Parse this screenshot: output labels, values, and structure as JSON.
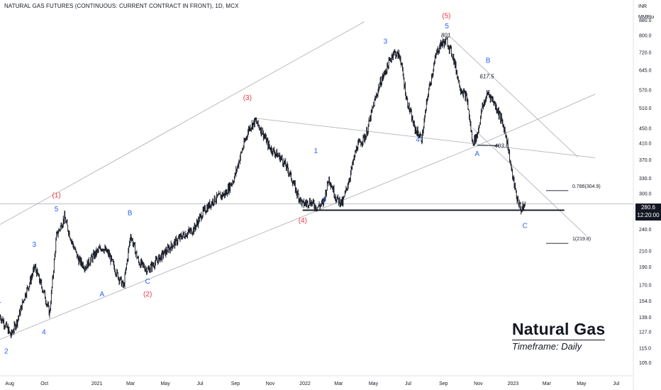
{
  "header": {
    "title": "NATURAL GAS FUTURES (CONTINUOUS: CURRENT CONTRACT IN FRONT), 1D, MCX"
  },
  "currency": "INR",
  "unit": "MMBtu",
  "last_price": {
    "value": "280.6",
    "countdown": "12:20:00"
  },
  "brand": {
    "title": "Natural Gas",
    "subtitle": "Timeframe: Daily"
  },
  "colors": {
    "bars": "#131722",
    "wave_blue": "#2962ff",
    "wave_red": "#f23645",
    "channel": "#b2b5be",
    "background": "#ffffff"
  },
  "chart_data": {
    "type": "line",
    "scale": "log",
    "ylim": [
      100,
      920
    ],
    "y_ticks": [
      105.0,
      115.0,
      127.0,
      139.0,
      154.0,
      170.0,
      190.0,
      210.0,
      240.0,
      270.0,
      300.0,
      330.0,
      370.0,
      410.0,
      450.0,
      510.0,
      570.0,
      645.0,
      720.0,
      800.0,
      880.0
    ],
    "x_ticks": [
      "Aug",
      "Oct",
      "2021",
      "Mar",
      "May",
      "Jul",
      "Sep",
      "Nov",
      "2022",
      "Mar",
      "May",
      "Jul",
      "Sep",
      "Nov",
      "2023",
      "Mar",
      "May",
      "Jul"
    ],
    "xlim": [
      "2020-07-15",
      "2023-07-31"
    ],
    "x_tick_dates": [
      "2020-08-01",
      "2020-10-01",
      "2021-01-01",
      "2021-03-01",
      "2021-05-01",
      "2021-07-01",
      "2021-09-01",
      "2021-11-01",
      "2022-01-01",
      "2022-03-01",
      "2022-05-01",
      "2022-07-01",
      "2022-09-01",
      "2022-11-01",
      "2023-01-01",
      "2023-03-01",
      "2023-05-01",
      "2023-07-01"
    ],
    "series": [
      {
        "x": [
          "2020-07-15",
          "2020-07-25",
          "2020-08-03",
          "2020-08-15",
          "2020-08-28",
          "2020-09-05",
          "2020-09-14",
          "2020-09-22",
          "2020-09-30",
          "2020-10-10",
          "2020-10-22",
          "2020-11-05",
          "2020-11-18",
          "2020-11-30",
          "2020-12-12",
          "2020-12-28",
          "2021-01-10",
          "2021-01-22",
          "2021-02-05",
          "2021-02-17",
          "2021-03-01",
          "2021-03-15",
          "2021-03-31",
          "2021-04-20",
          "2021-05-10",
          "2021-05-30",
          "2021-06-20",
          "2021-07-05",
          "2021-07-25",
          "2021-08-15",
          "2021-08-30",
          "2021-09-10",
          "2021-09-25",
          "2021-10-06",
          "2021-10-18",
          "2021-10-30",
          "2021-11-10",
          "2021-11-22",
          "2021-12-05",
          "2021-12-18",
          "2021-12-28",
          "2022-01-10",
          "2022-01-22",
          "2022-02-02",
          "2022-02-12",
          "2022-02-25",
          "2022-03-08",
          "2022-03-20",
          "2022-04-02",
          "2022-04-18",
          "2022-04-30",
          "2022-05-12",
          "2022-05-24",
          "2022-06-05",
          "2022-06-17",
          "2022-06-28",
          "2022-07-12",
          "2022-07-25",
          "2022-08-05",
          "2022-08-20",
          "2022-08-28",
          "2022-09-07",
          "2022-09-18",
          "2022-09-30",
          "2022-10-12",
          "2022-10-22",
          "2022-10-30",
          "2022-11-08",
          "2022-11-18",
          "2022-11-28",
          "2022-12-08",
          "2022-12-20",
          "2022-12-30",
          "2023-01-08",
          "2023-01-16",
          "2023-01-22"
        ],
        "close": [
          140,
          132,
          124,
          137,
          160,
          172,
          190,
          175,
          162,
          142,
          230,
          258,
          222,
          198,
          190,
          205,
          215,
          205,
          182,
          168,
          232,
          196,
          186,
          200,
          215,
          230,
          240,
          265,
          288,
          300,
          330,
          380,
          450,
          470,
          440,
          400,
          385,
          370,
          340,
          300,
          280,
          285,
          275,
          282,
          330,
          290,
          282,
          330,
          400,
          430,
          510,
          590,
          650,
          720,
          700,
          540,
          450,
          420,
          560,
          720,
          760,
          770,
          700,
          580,
          540,
          410,
          430,
          510,
          560,
          530,
          490,
          430,
          340,
          290,
          270,
          280
        ],
        "name": ""
      }
    ],
    "wave_labels": [
      {
        "text": "1",
        "date": "2020-07-14",
        "price": 152,
        "color": "blue"
      },
      {
        "text": "2",
        "date": "2020-07-26",
        "price": 111,
        "color": "blue"
      },
      {
        "text": "3",
        "date": "2020-09-13",
        "price": 215,
        "color": "blue"
      },
      {
        "text": "4",
        "date": "2020-09-30",
        "price": 125,
        "color": "blue"
      },
      {
        "text": "5",
        "date": "2020-10-22",
        "price": 268,
        "color": "blue"
      },
      {
        "text": "(1)",
        "date": "2020-10-22",
        "price": 292,
        "color": "red"
      },
      {
        "text": "A",
        "date": "2021-01-10",
        "price": 158,
        "color": "blue"
      },
      {
        "text": "B",
        "date": "2021-02-28",
        "price": 262,
        "color": "blue"
      },
      {
        "text": "C",
        "date": "2021-03-31",
        "price": 171,
        "color": "blue"
      },
      {
        "text": "(2)",
        "date": "2021-03-31",
        "price": 158,
        "color": "red"
      },
      {
        "text": "(3)",
        "date": "2021-09-22",
        "price": 535,
        "color": "red"
      },
      {
        "text": "(4)",
        "date": "2021-12-28",
        "price": 250,
        "color": "red"
      },
      {
        "text": "1",
        "date": "2022-01-20",
        "price": 385,
        "color": "blue"
      },
      {
        "text": "2",
        "date": "2022-02-03",
        "price": 283,
        "color": "blue"
      },
      {
        "text": "3",
        "date": "2022-05-22",
        "price": 760,
        "color": "blue"
      },
      {
        "text": "4",
        "date": "2022-07-18",
        "price": 413,
        "color": "blue"
      },
      {
        "text": "5",
        "date": "2022-09-07",
        "price": 835,
        "color": "blue"
      },
      {
        "text": "(5)",
        "date": "2022-09-06",
        "price": 890,
        "color": "red"
      },
      {
        "text": "A",
        "date": "2022-10-30",
        "price": 378,
        "color": "blue"
      },
      {
        "text": "B",
        "date": "2022-11-18",
        "price": 675,
        "color": "blue"
      },
      {
        "text": "C",
        "date": "2023-01-22",
        "price": 242,
        "color": "blue"
      }
    ],
    "annotations": [
      {
        "text": "801",
        "date": "2022-09-05",
        "price": 800
      },
      {
        "text": "617.5",
        "date": "2022-11-16",
        "price": 620
      },
      {
        "text": "403.6",
        "date": "2022-12-12",
        "price": 403
      },
      {
        "text": "0.786(304.9)",
        "date": "2023-04-10",
        "price": 304.9
      },
      {
        "text": "1(219.8)",
        "date": "2023-04-10",
        "price": 219.8
      }
    ],
    "levels": [
      {
        "label": "",
        "price": 270,
        "from": "2021-12-28",
        "to": "2023-04-01"
      },
      {
        "label": "",
        "price": 403.6,
        "from": "2022-10-30",
        "to": "2022-12-08"
      },
      {
        "label": "",
        "price": 304.9,
        "from": "2023-02-28",
        "to": "2023-04-08"
      },
      {
        "label": "",
        "price": 219.8,
        "from": "2023-02-28",
        "to": "2023-04-08"
      }
    ],
    "trendlines": [
      {
        "from": [
          "2020-07-15",
          121
        ],
        "to": [
          "2022-10-30",
          403
        ]
      },
      {
        "from": [
          "2020-07-15",
          247
        ],
        "to": [
          "2022-04-15",
          870
        ]
      },
      {
        "from": [
          "2021-10-05",
          478
        ],
        "to": [
          "2023-05-25",
          374
        ]
      },
      {
        "from": [
          "2022-10-30",
          403
        ],
        "to": [
          "2023-05-25",
          555
        ]
      },
      {
        "from": [
          "2022-09-10",
          800
        ],
        "to": [
          "2023-04-25",
          375
        ]
      },
      {
        "from": [
          "2022-10-22",
          450
        ],
        "to": [
          "2023-05-10",
          230
        ]
      }
    ],
    "grid": false
  }
}
